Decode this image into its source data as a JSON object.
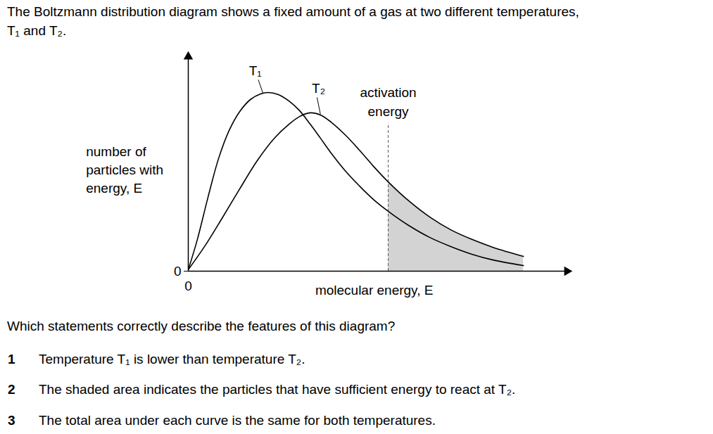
{
  "question": {
    "stem": [
      "The Boltzmann distribution diagram shows a fixed amount of a gas at two different temperatures,",
      "T₁ and T₂."
    ],
    "prompt": "Which statements correctly describe the features of this diagram?",
    "statements": [
      {
        "number": 1,
        "text": "Temperature T₁ is lower than temperature T₂."
      },
      {
        "number": 2,
        "text": "The shaded area indicates the particles that have sufficient energy to react at T₂."
      },
      {
        "number": 3,
        "text": "The total area under each curve is the same for both temperatures."
      }
    ]
  },
  "chart_data": {
    "type": "line",
    "x_label": "molecular energy, E",
    "y_label": [
      "number of",
      "particles with",
      "energy, E"
    ],
    "xlim": [
      0,
      10
    ],
    "ylim": [
      0,
      10
    ],
    "xticks": [
      0
    ],
    "yticks": [
      0
    ],
    "series": [
      {
        "name": "T₁",
        "color": "#000000",
        "x": [
          0,
          0.24,
          0.52,
          0.8,
          1.08,
          1.36,
          1.64,
          1.91,
          2.1,
          2.38,
          2.66,
          2.94,
          3.22,
          3.49,
          3.77,
          4.14,
          4.52,
          4.89,
          5.28,
          5.82,
          6.38,
          6.93,
          7.49,
          8.05,
          8.85
        ],
        "values": [
          0.07,
          1.48,
          3.44,
          5.25,
          6.56,
          7.44,
          8.0,
          8.26,
          8.33,
          8.23,
          7.93,
          7.48,
          6.85,
          6.2,
          5.51,
          4.69,
          3.97,
          3.34,
          2.79,
          2.13,
          1.57,
          1.15,
          0.79,
          0.52,
          0.26
        ]
      },
      {
        "name": "T₂",
        "color": "#000000",
        "x": [
          0,
          0.43,
          0.89,
          1.36,
          1.82,
          2.29,
          2.66,
          2.94,
          3.22,
          3.49,
          3.77,
          4.14,
          4.52,
          4.89,
          5.28,
          5.82,
          6.38,
          6.93,
          7.49,
          8.05,
          8.85
        ],
        "values": [
          0.07,
          1.15,
          2.46,
          3.84,
          5.15,
          6.23,
          6.85,
          7.21,
          7.38,
          7.28,
          6.95,
          6.36,
          5.64,
          4.89,
          4.16,
          3.28,
          2.52,
          1.93,
          1.48,
          1.11,
          0.69
        ]
      }
    ],
    "activation_energy": {
      "label": [
        "activation",
        "energy"
      ],
      "x": 5.28,
      "shade_series": "T₂",
      "shade_color": "#d3d3d3"
    }
  }
}
